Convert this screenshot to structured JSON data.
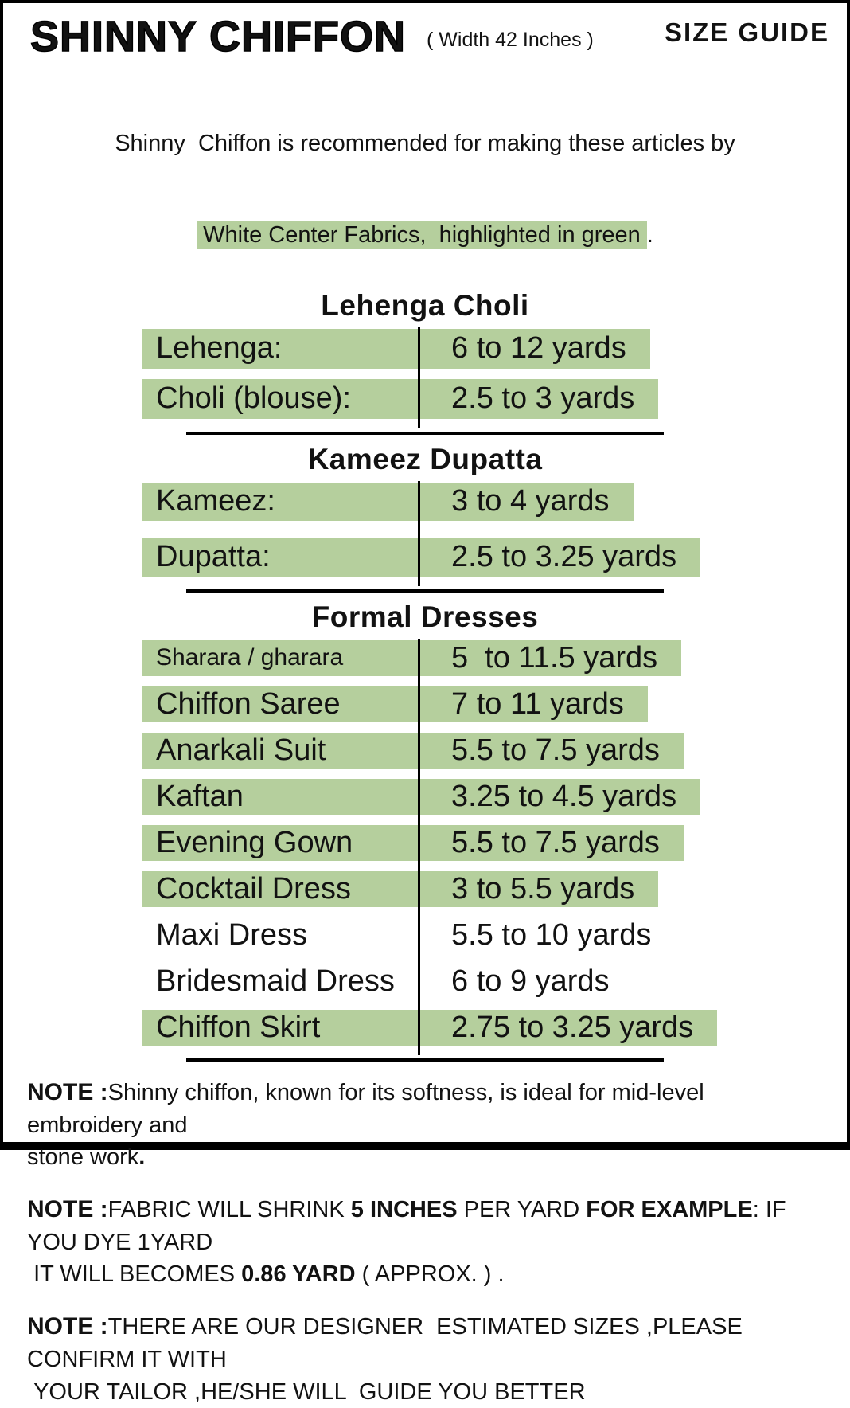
{
  "colors": {
    "highlight": "#b5cf9d",
    "border": "#000000"
  },
  "header": {
    "title": "SHINNY CHIFFON",
    "width_note": "( Width 42 Inches )",
    "size_guide": "SIZE GUIDE"
  },
  "intro": {
    "line1": "Shinny  Chiffon is recommended for making these articles by",
    "line2_highlight": "White Center Fabrics,  highlighted in green",
    "line2_suffix": "."
  },
  "sections": [
    {
      "title": "Lehenga Choli",
      "rows": [
        {
          "label": "Lehenga:",
          "value": "6 to 12 yards",
          "highlight": true
        },
        {
          "label": "Choli (blouse):",
          "value": "2.5 to 3 yards",
          "highlight": true
        }
      ]
    },
    {
      "title": "Kameez Dupatta",
      "rows": [
        {
          "label": "Kameez:",
          "value": "3 to 4 yards",
          "highlight": true
        },
        {
          "label": "Dupatta:",
          "value": "2.5 to 3.25 yards",
          "highlight": true
        }
      ]
    },
    {
      "title": "Formal Dresses",
      "rows": [
        {
          "label": "Sharara / gharara",
          "value": "5  to 11.5 yards",
          "highlight": true,
          "small_label": true
        },
        {
          "label": "Chiffon Saree",
          "value": "7 to 11 yards",
          "highlight": true
        },
        {
          "label": "Anarkali Suit",
          "value": "5.5 to 7.5 yards",
          "highlight": true
        },
        {
          "label": "Kaftan",
          "value": "3.25 to 4.5 yards",
          "highlight": true
        },
        {
          "label": "Evening Gown",
          "value": "5.5 to 7.5 yards",
          "highlight": true
        },
        {
          "label": "Cocktail Dress",
          "value": "3 to 5.5 yards",
          "highlight": true
        },
        {
          "label": "Maxi Dress",
          "value": "5.5 to 10 yards",
          "highlight": false
        },
        {
          "label": "Bridesmaid Dress",
          "value": "6 to 9 yards",
          "highlight": false
        },
        {
          "label": "Chiffon Skirt",
          "value": "2.75 to 3.25 yards",
          "highlight": true
        }
      ]
    }
  ],
  "notes": [
    {
      "label": "NOTE :",
      "segments": [
        {
          "t": "Shinny chiffon, known for its softness, is ideal for mid-level   embroidery and\nstone work",
          "b": false
        },
        {
          "t": ".",
          "b": true
        }
      ]
    },
    {
      "label": "NOTE :",
      "segments": [
        {
          "t": "FABRIC WILL SHRINK ",
          "b": false
        },
        {
          "t": "5 INCHES",
          "b": true
        },
        {
          "t": " PER YARD ",
          "b": false
        },
        {
          "t": "FOR EXAMPLE",
          "b": true
        },
        {
          "t": ": IF YOU DYE 1YARD\n IT WILL BECOMES ",
          "b": false
        },
        {
          "t": "0.86 YARD",
          "b": true
        },
        {
          "t": " ( APPROX. ) .",
          "b": false
        }
      ]
    },
    {
      "label": "NOTE :",
      "segments": [
        {
          "t": "THERE ARE OUR DESIGNER  ESTIMATED SIZES ,PLEASE CONFIRM IT WITH\n YOUR TAILOR ,HE/SHE WILL  GUIDE YOU BETTER",
          "b": false
        }
      ]
    }
  ]
}
